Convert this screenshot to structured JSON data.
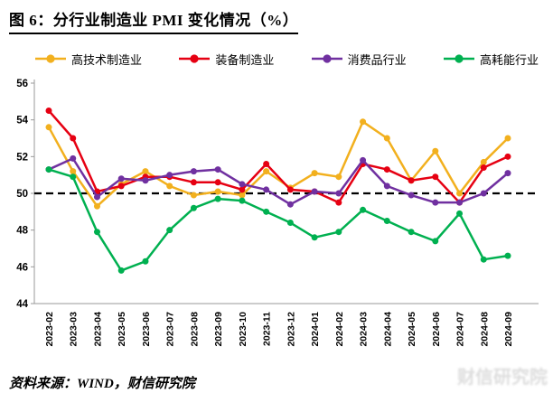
{
  "title": "图 6：分行业制造业 PMI 变化情况（%）",
  "source": "资料来源：WIND，财信研究院",
  "watermark": "财信研究院",
  "chart_data": {
    "type": "line",
    "x": [
      "2023-02",
      "2023-03",
      "2023-04",
      "2023-05",
      "2023-06",
      "2023-07",
      "2023-08",
      "2023-09",
      "2023-10",
      "2023-11",
      "2023-12",
      "2024-01",
      "2024-02",
      "2024-03",
      "2024-04",
      "2024-05",
      "2024-06",
      "2024-07",
      "2024-08",
      "2024-09"
    ],
    "series": [
      {
        "name": "高技术制造业",
        "color": "#F2B01E",
        "values": [
          53.6,
          51.2,
          49.3,
          50.5,
          51.2,
          50.4,
          49.9,
          50.1,
          49.9,
          51.2,
          50.3,
          51.1,
          50.9,
          53.9,
          53.0,
          50.7,
          52.3,
          50.0,
          51.7,
          53.0
        ]
      },
      {
        "name": "装备制造业",
        "color": "#E60012",
        "values": [
          54.5,
          53.0,
          50.1,
          50.4,
          50.9,
          50.9,
          50.6,
          50.6,
          50.2,
          51.6,
          50.2,
          50.1,
          49.5,
          51.6,
          51.3,
          50.7,
          50.9,
          49.5,
          51.4,
          52.0
        ]
      },
      {
        "name": "消费品行业",
        "color": "#7030A0",
        "values": [
          51.3,
          51.9,
          49.8,
          50.8,
          50.7,
          51.0,
          51.2,
          51.3,
          50.5,
          50.2,
          49.4,
          50.1,
          50.0,
          51.8,
          50.4,
          49.9,
          49.5,
          49.5,
          50.0,
          51.1
        ]
      },
      {
        "name": "高耗能行业",
        "color": "#00B050",
        "values": [
          51.3,
          50.9,
          47.9,
          45.8,
          46.3,
          48.0,
          49.2,
          49.7,
          49.6,
          49.0,
          48.4,
          47.6,
          47.9,
          49.1,
          48.5,
          47.9,
          47.4,
          48.9,
          46.4,
          46.6
        ]
      }
    ],
    "ylim": [
      44,
      56
    ],
    "yticks": [
      44,
      46,
      48,
      50,
      52,
      54,
      56
    ],
    "reference_line": 50,
    "grid": false,
    "legend_position": "top"
  }
}
